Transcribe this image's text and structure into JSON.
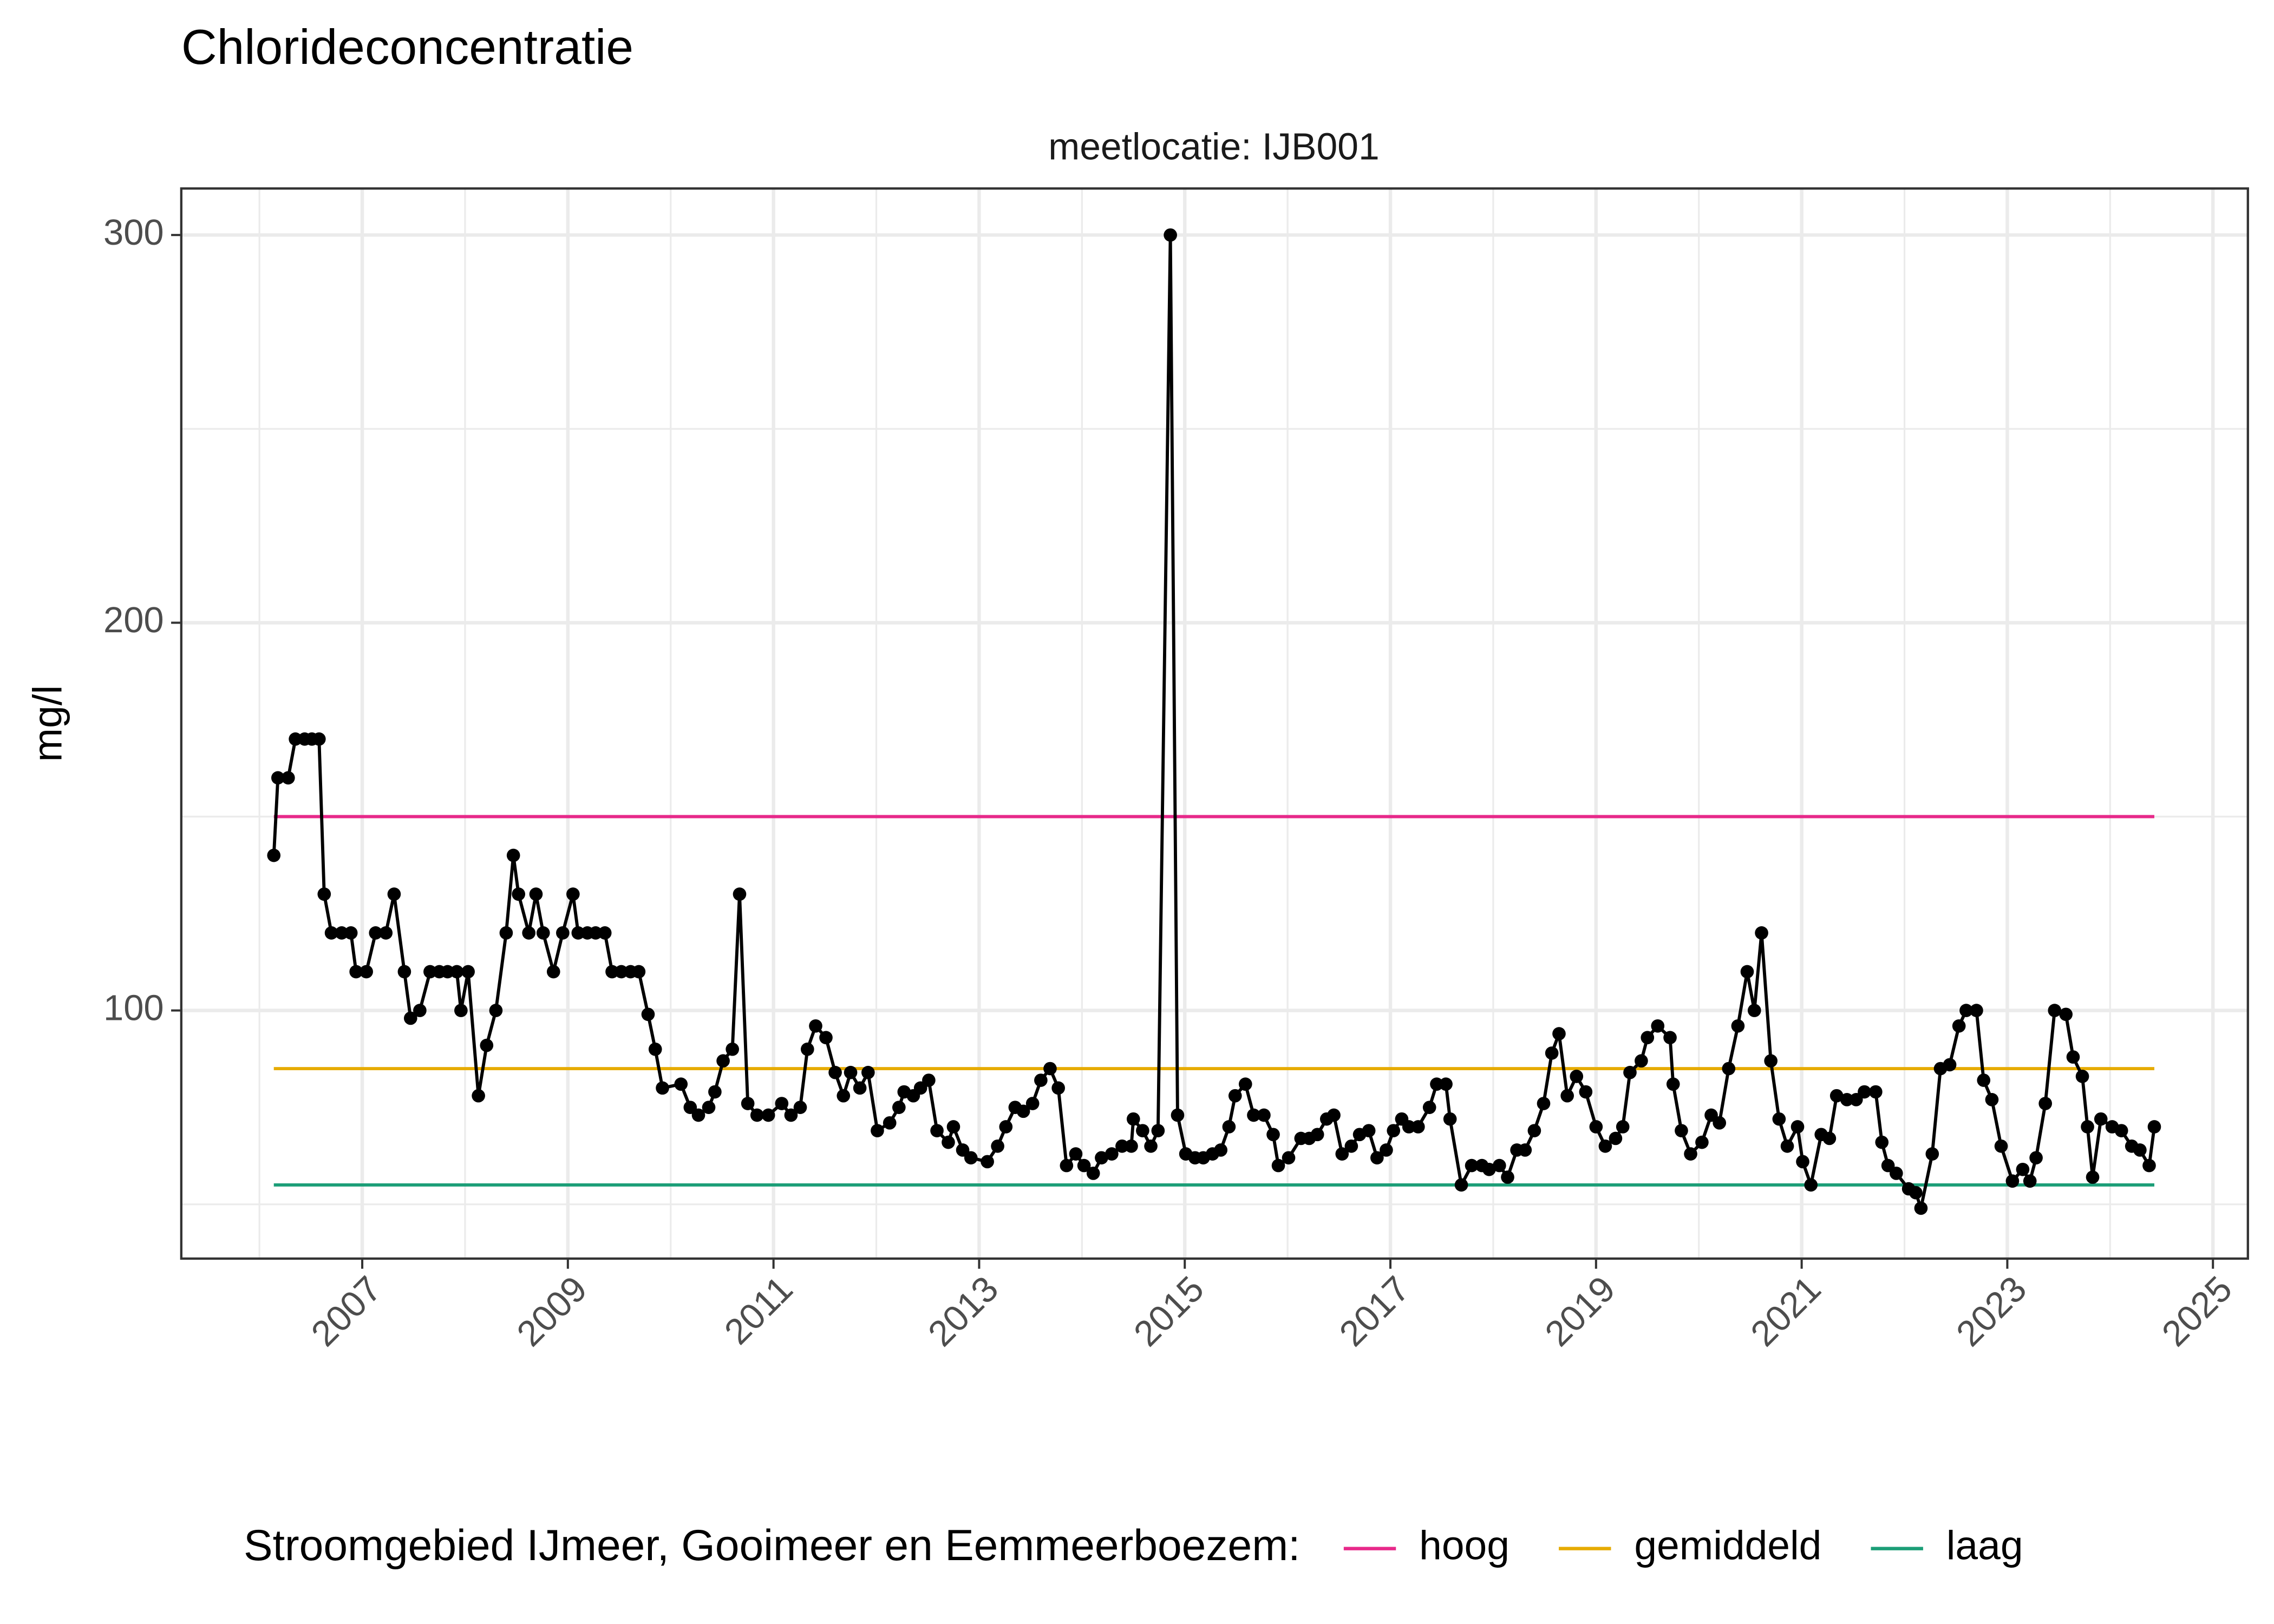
{
  "chart_data": {
    "type": "line",
    "title": "Chlorideconcentratie",
    "subtitle": "meetlocatie: IJB001",
    "y_label": "mg/l",
    "legend_title": "Stroomgebied IJmeer, Gooimeer en Eemmeerboezem:",
    "legend_position": "bottom",
    "grid": true,
    "xlim": [
      2005.24,
      2025.34
    ],
    "xticks": [
      2007,
      2009,
      2011,
      2013,
      2015,
      2017,
      2019,
      2021,
      2023,
      2025
    ],
    "ylim": [
      36,
      312
    ],
    "yticks": [
      100,
      200,
      300
    ],
    "reference_lines": [
      {
        "name": "hoog",
        "color": "#e7298a",
        "value": 150
      },
      {
        "name": "gemiddeld",
        "color": "#e6ab02",
        "value": 85
      },
      {
        "name": "laag",
        "color": "#1b9e77",
        "value": 55
      }
    ],
    "color": "#000000",
    "x": [
      2006.14,
      2006.18,
      2006.28,
      2006.35,
      2006.44,
      2006.51,
      2006.58,
      2006.63,
      2006.7,
      2006.8,
      2006.89,
      2006.94,
      2007.04,
      2007.13,
      2007.23,
      2007.31,
      2007.41,
      2007.47,
      2007.56,
      2007.66,
      2007.75,
      2007.83,
      2007.92,
      2007.96,
      2008.03,
      2008.13,
      2008.21,
      2008.3,
      2008.4,
      2008.47,
      2008.52,
      2008.62,
      2008.69,
      2008.76,
      2008.86,
      2008.95,
      2009.05,
      2009.1,
      2009.19,
      2009.27,
      2009.36,
      2009.43,
      2009.52,
      2009.61,
      2009.69,
      2009.78,
      2009.85,
      2009.92,
      2010.1,
      2010.19,
      2010.27,
      2010.37,
      2010.43,
      2010.51,
      2010.6,
      2010.67,
      2010.75,
      2010.84,
      2010.95,
      2011.08,
      2011.17,
      2011.26,
      2011.33,
      2011.41,
      2011.51,
      2011.6,
      2011.68,
      2011.75,
      2011.84,
      2011.92,
      2012.01,
      2012.13,
      2012.22,
      2012.27,
      2012.36,
      2012.43,
      2012.51,
      2012.59,
      2012.7,
      2012.75,
      2012.84,
      2012.92,
      2013.08,
      2013.18,
      2013.26,
      2013.35,
      2013.43,
      2013.52,
      2013.6,
      2013.69,
      2013.77,
      2013.85,
      2013.94,
      2014.02,
      2014.11,
      2014.19,
      2014.29,
      2014.39,
      2014.48,
      2014.5,
      2014.59,
      2014.67,
      2014.74,
      2014.86,
      2014.93,
      2015.01,
      2015.1,
      2015.18,
      2015.27,
      2015.35,
      2015.43,
      2015.49,
      2015.59,
      2015.67,
      2015.77,
      2015.86,
      2015.91,
      2016.01,
      2016.13,
      2016.21,
      2016.29,
      2016.38,
      2016.45,
      2016.53,
      2016.62,
      2016.7,
      2016.79,
      2016.87,
      2016.96,
      2017.03,
      2017.11,
      2017.18,
      2017.27,
      2017.38,
      2017.45,
      2017.54,
      2017.58,
      2017.69,
      2017.79,
      2017.89,
      2017.96,
      2018.06,
      2018.14,
      2018.23,
      2018.31,
      2018.4,
      2018.49,
      2018.57,
      2018.64,
      2018.72,
      2018.81,
      2018.9,
      2019.0,
      2019.09,
      2019.19,
      2019.26,
      2019.33,
      2019.44,
      2019.5,
      2019.6,
      2019.72,
      2019.75,
      2019.83,
      2019.92,
      2020.03,
      2020.12,
      2020.2,
      2020.29,
      2020.38,
      2020.47,
      2020.54,
      2020.61,
      2020.7,
      2020.78,
      2020.86,
      2020.96,
      2021.01,
      2021.09,
      2021.19,
      2021.27,
      2021.34,
      2021.44,
      2021.53,
      2021.61,
      2021.72,
      2021.78,
      2021.84,
      2021.92,
      2022.04,
      2022.11,
      2022.16,
      2022.27,
      2022.35,
      2022.44,
      2022.53,
      2022.6,
      2022.7,
      2022.77,
      2022.85,
      2022.94,
      2023.05,
      2023.15,
      2023.22,
      2023.28,
      2023.37,
      2023.46,
      2023.57,
      2023.64,
      2023.73,
      2023.78,
      2023.83,
      2023.91,
      2024.02,
      2024.11,
      2024.21,
      2024.29,
      2024.38,
      2024.43
    ],
    "values": [
      140,
      160,
      160,
      170,
      170,
      170,
      170,
      130,
      120,
      120,
      120,
      110,
      110,
      120,
      120,
      130,
      110,
      98,
      100,
      110,
      110,
      110,
      110,
      100,
      110,
      78,
      91,
      100,
      120,
      140,
      130,
      120,
      130,
      120,
      110,
      120,
      130,
      120,
      120,
      120,
      120,
      110,
      110,
      110,
      110,
      99,
      90,
      80,
      81,
      75,
      73,
      75,
      79,
      87,
      90,
      130,
      76,
      73,
      73,
      76,
      73,
      75,
      90,
      96,
      93,
      84,
      78,
      84,
      80,
      84,
      69,
      71,
      75,
      79,
      78,
      80,
      82,
      69,
      66,
      70,
      64,
      62,
      61,
      65,
      70,
      75,
      74,
      76,
      82,
      85,
      80,
      60,
      63,
      60,
      58,
      62,
      63,
      65,
      65,
      72,
      69,
      65,
      69,
      300,
      73,
      63,
      62,
      62,
      63,
      64,
      70,
      78,
      81,
      73,
      73,
      68,
      60,
      62,
      67,
      67,
      68,
      72,
      73,
      63,
      65,
      68,
      69,
      62,
      64,
      69,
      72,
      70,
      70,
      75,
      81,
      81,
      72,
      55,
      60,
      60,
      59,
      60,
      57,
      64,
      64,
      69,
      76,
      89,
      94,
      78,
      83,
      79,
      70,
      65,
      67,
      70,
      84,
      87,
      93,
      96,
      93,
      81,
      69,
      63,
      66,
      73,
      71,
      85,
      96,
      110,
      100,
      120,
      87,
      72,
      65,
      70,
      61,
      55,
      68,
      67,
      78,
      77,
      77,
      79,
      79,
      66,
      60,
      58,
      54,
      53,
      49,
      63,
      85,
      86,
      96,
      100,
      100,
      82,
      77,
      65,
      56,
      59,
      56,
      62,
      76,
      100,
      99,
      88,
      83,
      70,
      57,
      72,
      70,
      69,
      65,
      64,
      60,
      70
    ]
  }
}
